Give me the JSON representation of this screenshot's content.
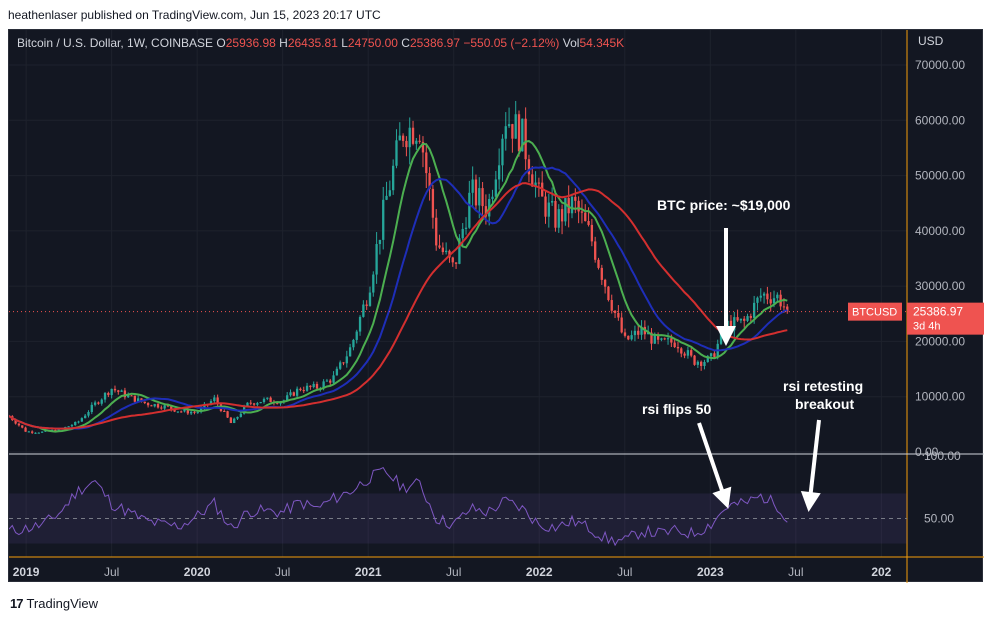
{
  "publisher_line": "heathenlaser published on TradingView.com, Jun 15, 2023 20:17 UTC",
  "symbol_info": {
    "name": "Bitcoin / U.S. Dollar, 1W, COINBASE",
    "o_label": "O",
    "o": "25936.98",
    "h_label": "H",
    "h": "26435.81",
    "l_label": "L",
    "l": "24750.00",
    "c_label": "C",
    "c": "25386.97",
    "change": "−550.05 (−2.12%)",
    "vol_label": "Vol",
    "vol": "54.345K"
  },
  "currency": "USD",
  "price_tag": {
    "symbol": "BTCUSD",
    "price": "25386.97",
    "countdown": "3d 4h"
  },
  "annotations": {
    "btc_price": "BTC price: ~$19,000",
    "rsi_flips": "rsi flips 50",
    "rsi_retest_1": "rsi retesting",
    "rsi_retest_2": "breakout"
  },
  "footer_brand": "TradingView",
  "colors": {
    "background": "#131722",
    "candle_up": "#26a69a",
    "candle_down": "#ef5350",
    "ma_fast": "#4caf50",
    "ma_mid": "#1e2eb8",
    "ma_slow": "#d32f2f",
    "rsi_line": "#7e57c2",
    "price_line": "#ef5350",
    "axis_border": "#f59e0b"
  },
  "chart_data": [
    {
      "type": "candlestick",
      "title": "Bitcoin / U.S. Dollar, 1W, COINBASE",
      "ylabel": "USD",
      "ylim": [
        0,
        70000
      ],
      "y_ticks": [
        "70000.00",
        "60000.00",
        "50000.00",
        "40000.00",
        "30000.00",
        "20000.00",
        "10000.00",
        "0.00"
      ],
      "x_ticks": [
        "2019",
        "Jul",
        "2020",
        "Jul",
        "2021",
        "Jul",
        "2022",
        "Jul",
        "2023",
        "Jul",
        "202"
      ],
      "x_tick_dates": [
        2019.0,
        2019.5,
        2020.0,
        2020.5,
        2021.0,
        2021.5,
        2022.0,
        2022.5,
        2023.0,
        2023.5,
        2024.0
      ],
      "last_price": 25386.97,
      "series": [
        {
          "type": "close",
          "x": [
            2018.9,
            2019.0,
            2019.1,
            2019.2,
            2019.3,
            2019.4,
            2019.5,
            2019.6,
            2019.7,
            2019.8,
            2019.9,
            2020.0,
            2020.1,
            2020.2,
            2020.3,
            2020.4,
            2020.5,
            2020.6,
            2020.7,
            2020.8,
            2020.9,
            2021.0,
            2021.1,
            2021.2,
            2021.3,
            2021.4,
            2021.5,
            2021.6,
            2021.7,
            2021.8,
            2021.9,
            2022.0,
            2022.1,
            2022.2,
            2022.3,
            2022.4,
            2022.5,
            2022.6,
            2022.7,
            2022.8,
            2022.9,
            2023.0,
            2023.1,
            2023.2,
            2023.3,
            2023.4,
            2023.45
          ],
          "values": [
            6500,
            3700,
            3600,
            4100,
            5300,
            8600,
            11500,
            10000,
            8800,
            8300,
            7400,
            7200,
            9600,
            5100,
            8800,
            9400,
            9200,
            11500,
            11700,
            13500,
            19000,
            29000,
            45000,
            58000,
            59000,
            38000,
            33000,
            47000,
            44000,
            61000,
            57000,
            46000,
            42000,
            45000,
            39000,
            29000,
            20000,
            22000,
            19500,
            20000,
            16500,
            16600,
            23000,
            23500,
            28500,
            28000,
            25400
          ]
        }
      ],
      "moving_averages": [
        {
          "color_key": "ma_fast"
        },
        {
          "color_key": "ma_mid"
        },
        {
          "color_key": "ma_slow"
        }
      ]
    },
    {
      "type": "line",
      "title": "",
      "ylim": [
        20,
        100
      ],
      "y_ticks": [
        "100.00",
        "50.00"
      ],
      "reference_lines": [
        50
      ],
      "band": [
        30,
        70
      ],
      "x": [
        2018.9,
        2019.0,
        2019.1,
        2019.2,
        2019.3,
        2019.4,
        2019.5,
        2019.6,
        2019.7,
        2019.8,
        2019.9,
        2020.0,
        2020.1,
        2020.2,
        2020.3,
        2020.4,
        2020.5,
        2020.6,
        2020.7,
        2020.8,
        2020.9,
        2021.0,
        2021.1,
        2021.2,
        2021.3,
        2021.4,
        2021.5,
        2021.6,
        2021.7,
        2021.8,
        2021.9,
        2022.0,
        2022.1,
        2022.2,
        2022.3,
        2022.4,
        2022.5,
        2022.6,
        2022.7,
        2022.8,
        2022.9,
        2023.0,
        2023.1,
        2023.2,
        2023.3,
        2023.4,
        2023.45
      ],
      "values": [
        40,
        42,
        45,
        55,
        72,
        80,
        62,
        55,
        48,
        45,
        44,
        52,
        62,
        42,
        56,
        56,
        55,
        63,
        58,
        66,
        72,
        82,
        88,
        75,
        78,
        50,
        45,
        58,
        55,
        64,
        58,
        45,
        43,
        48,
        42,
        33,
        32,
        40,
        38,
        40,
        38,
        45,
        60,
        62,
        68,
        60,
        50
      ]
    }
  ]
}
